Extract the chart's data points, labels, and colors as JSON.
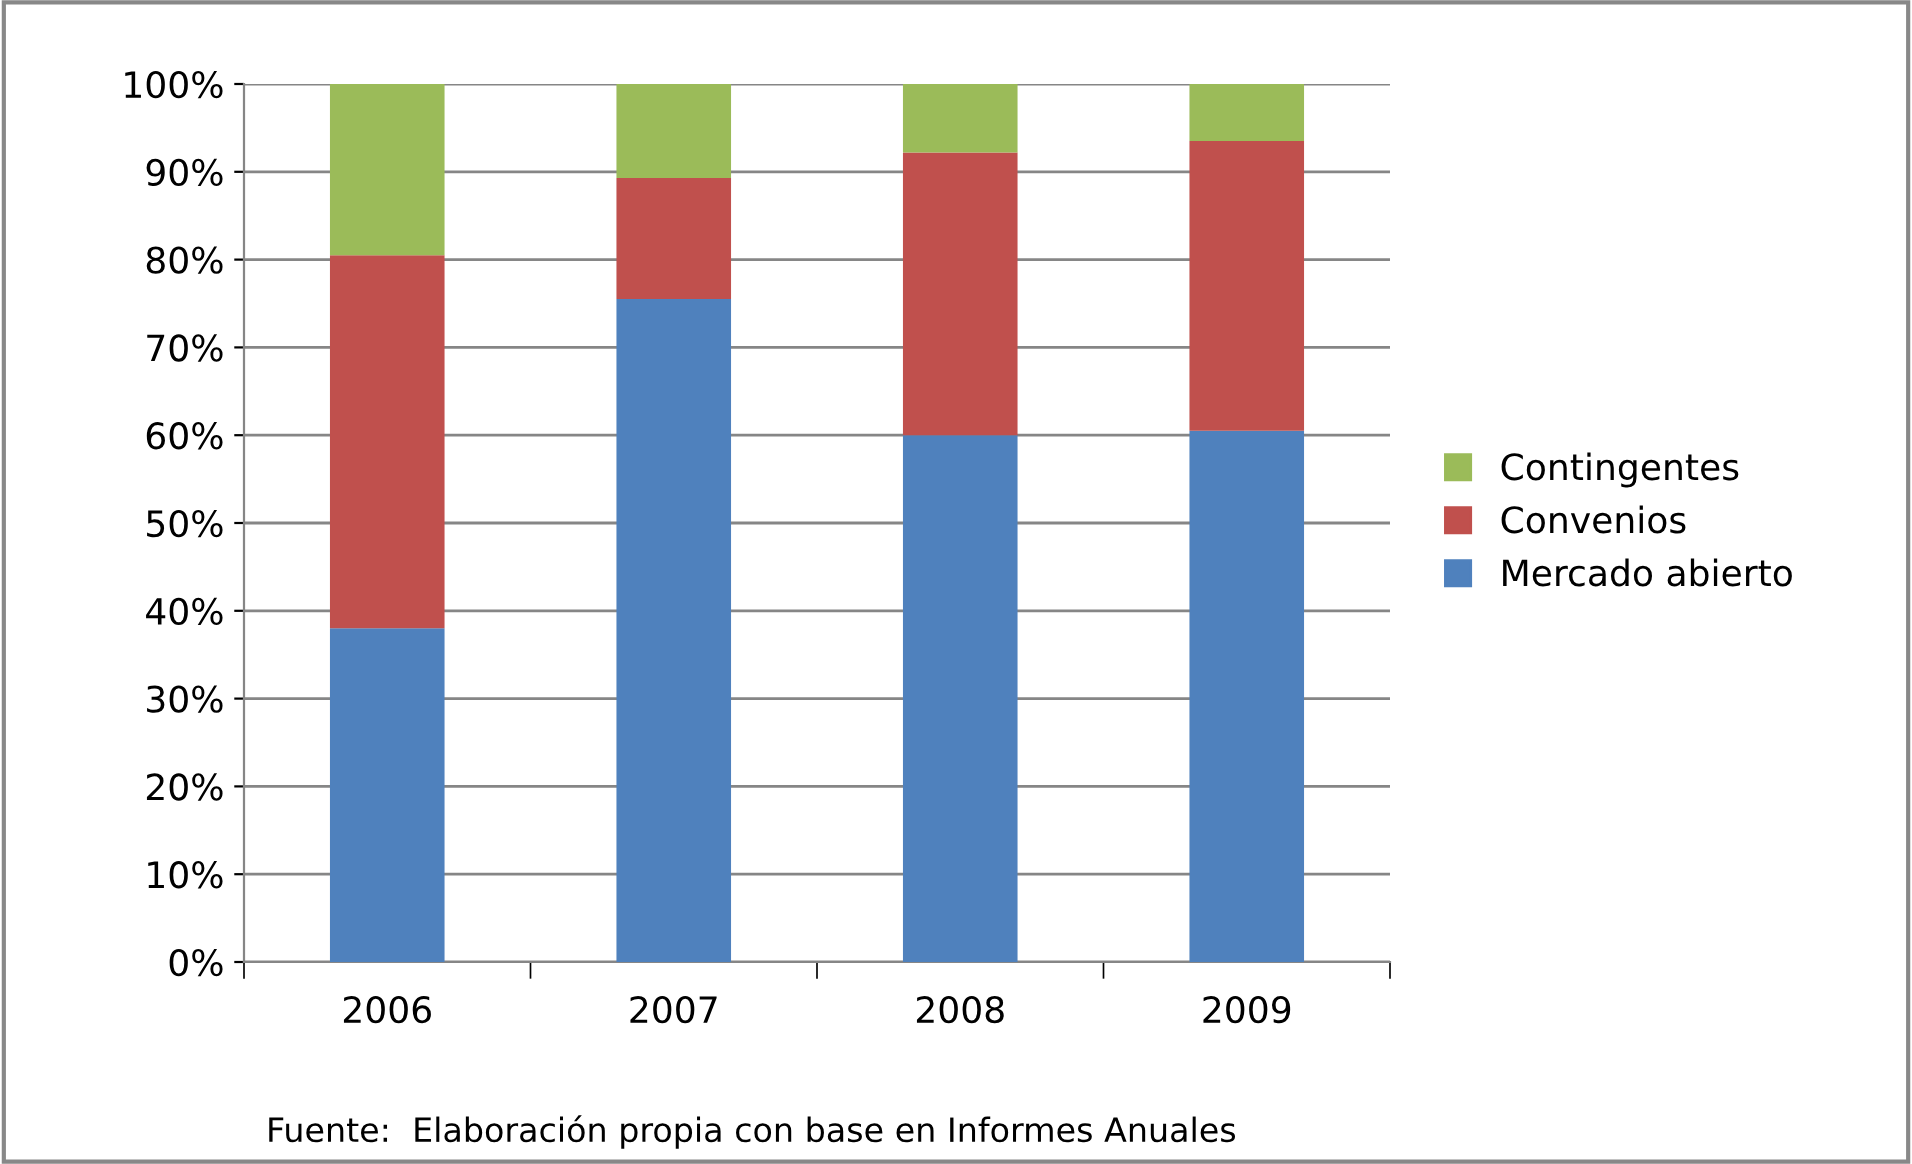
{
  "chart_data": {
    "type": "bar",
    "stacked": true,
    "categories": [
      "2006",
      "2007",
      "2008",
      "2009"
    ],
    "series": [
      {
        "name": "Mercado abierto",
        "color": "#4f81bd",
        "values": [
          38,
          75.5,
          60,
          60.5
        ]
      },
      {
        "name": "Convenios",
        "color": "#c0504d",
        "values": [
          42.5,
          13.8,
          32.2,
          33
        ]
      },
      {
        "name": "Contingentes",
        "color": "#9bbb59",
        "values": [
          19.5,
          10.7,
          7.8,
          6.5
        ]
      }
    ],
    "ylim": [
      0,
      100
    ],
    "yticks": [
      {
        "value": 0,
        "label": "0%"
      },
      {
        "value": 10,
        "label": "10%"
      },
      {
        "value": 20,
        "label": "20%"
      },
      {
        "value": 30,
        "label": "30%"
      },
      {
        "value": 40,
        "label": "40%"
      },
      {
        "value": 50,
        "label": "50%"
      },
      {
        "value": 60,
        "label": "60%"
      },
      {
        "value": 70,
        "label": "70%"
      },
      {
        "value": 80,
        "label": "80%"
      },
      {
        "value": 90,
        "label": "90%"
      },
      {
        "value": 100,
        "label": "100%"
      }
    ],
    "grid": "y",
    "legend": "right",
    "annotations": [
      "Fuente:  Elaboración propia con base en Informes Anuales"
    ]
  }
}
